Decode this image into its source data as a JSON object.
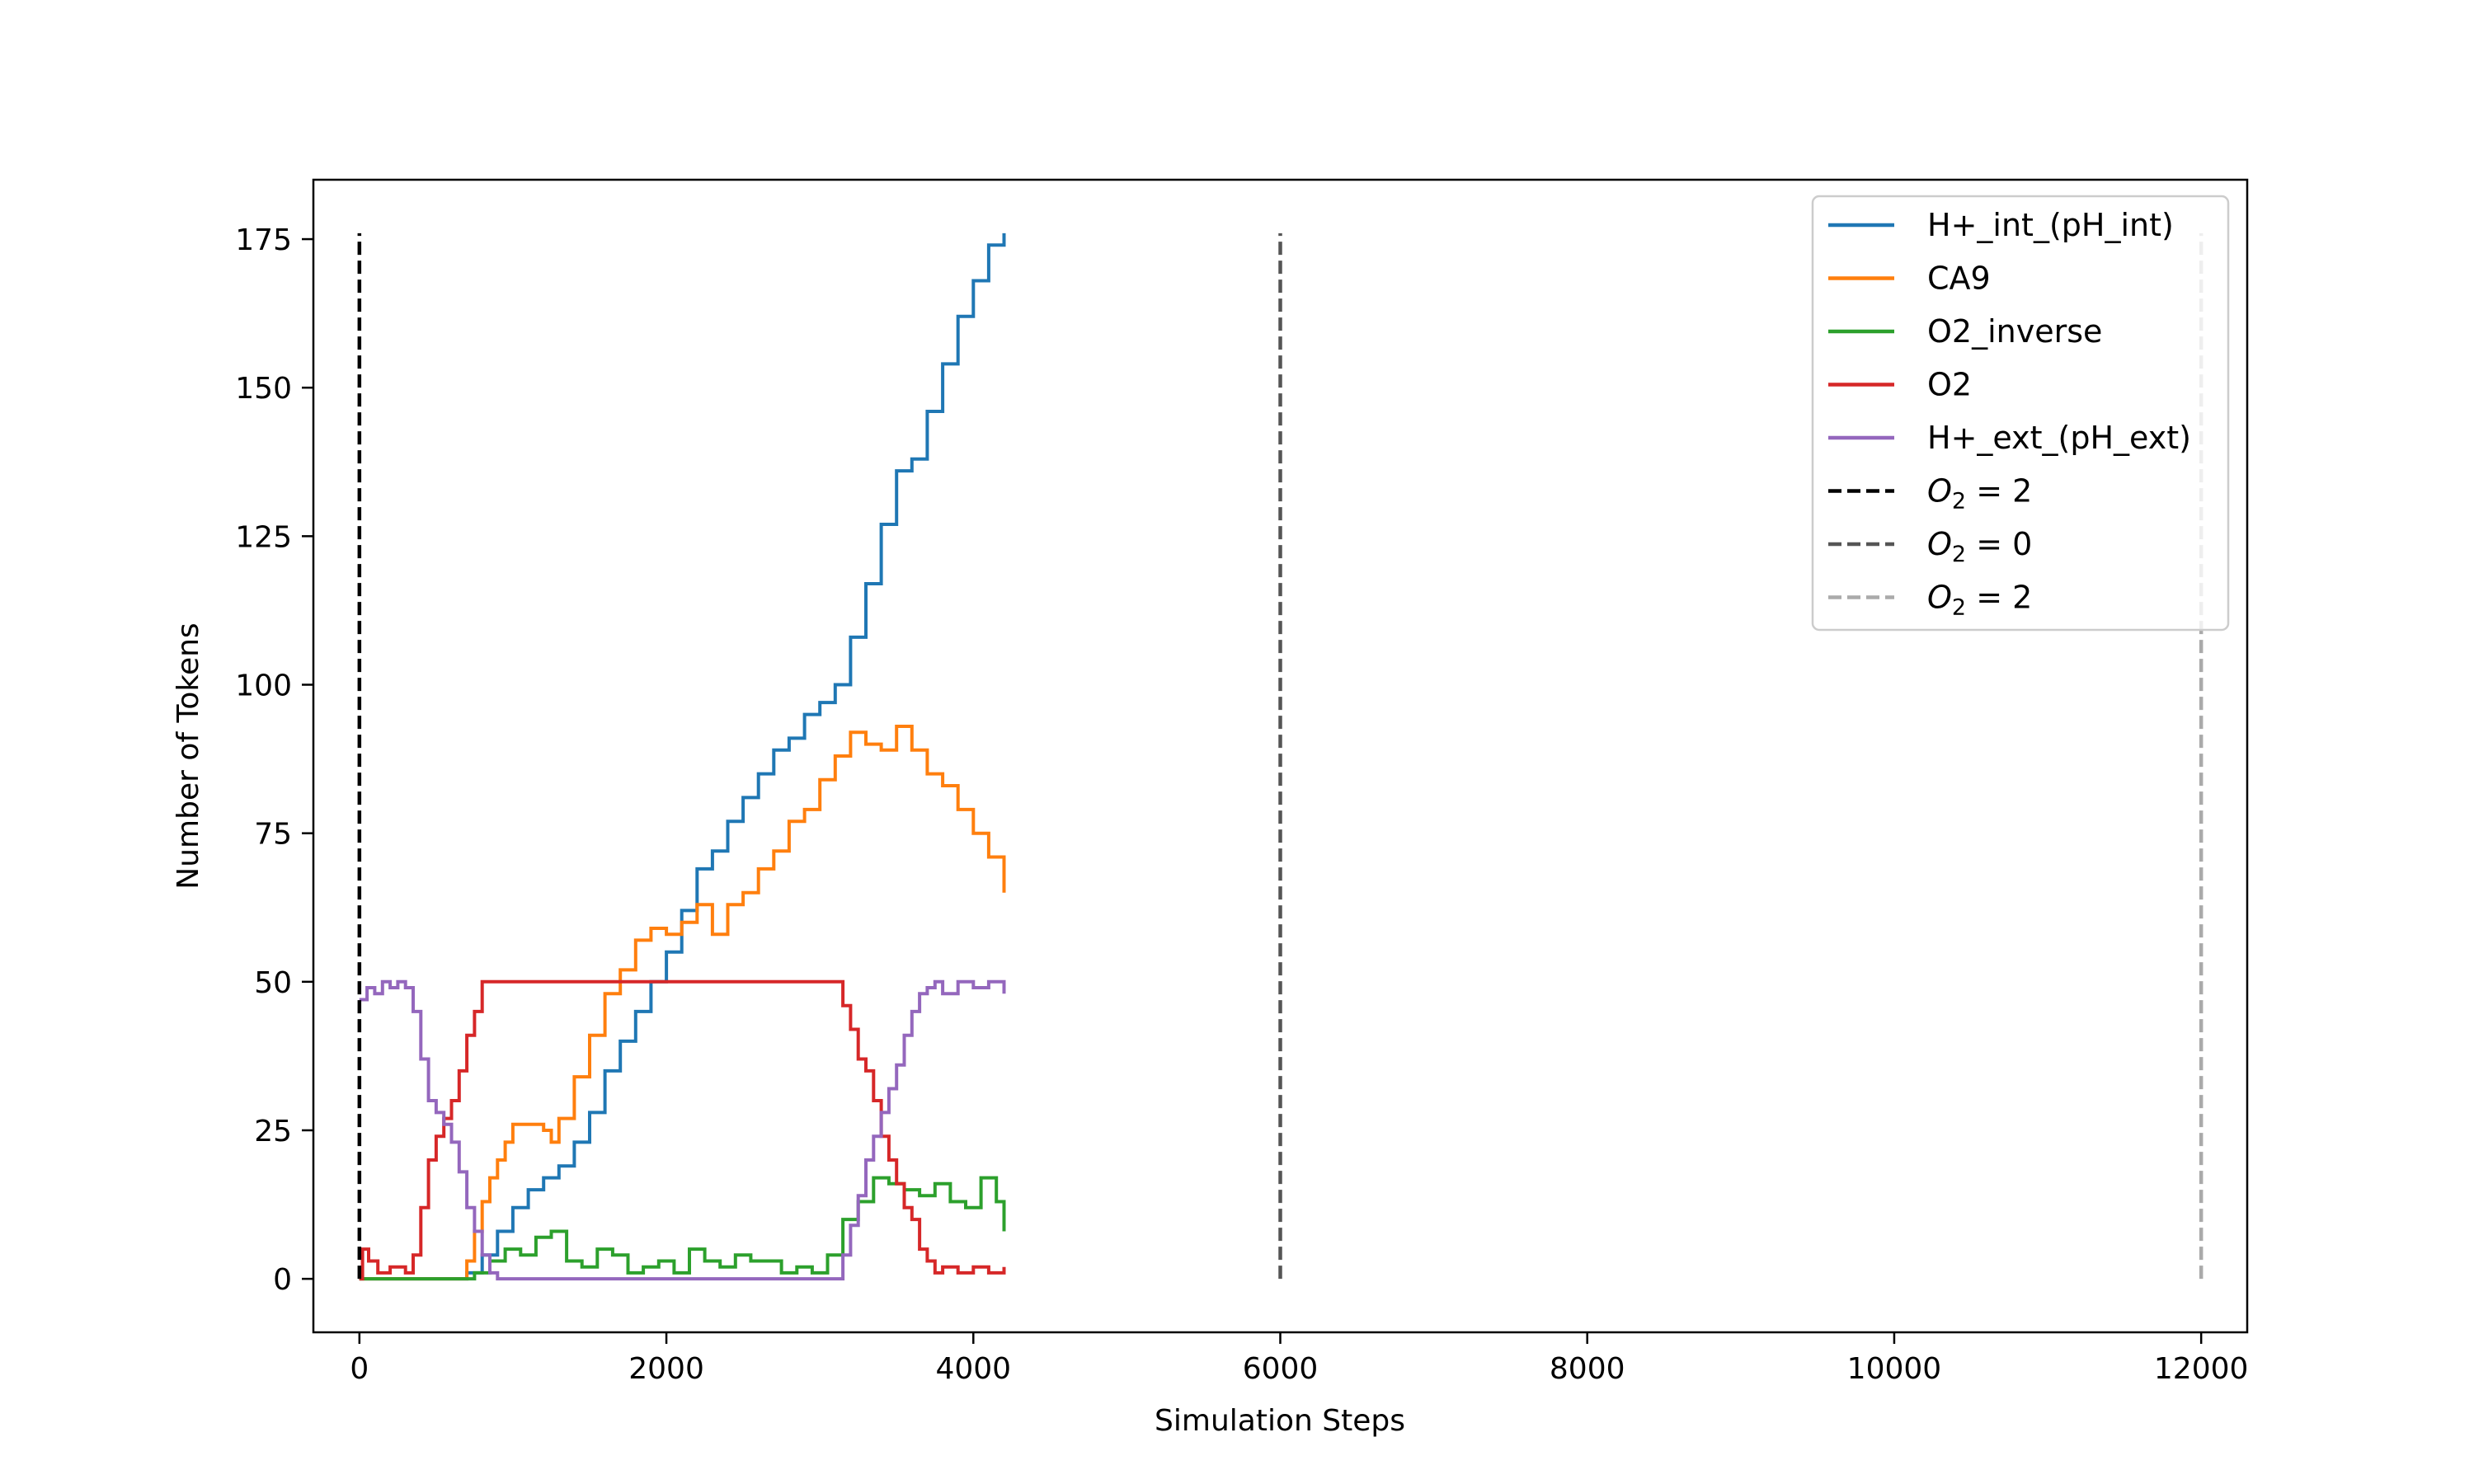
{
  "chart_data": {
    "type": "line",
    "title": "",
    "xlabel": "Simulation Steps",
    "ylabel": "Number of Tokens",
    "xlim": [
      -300,
      12300
    ],
    "ylim": [
      -9,
      185
    ],
    "x_ticks": [
      0,
      2000,
      4000,
      6000,
      8000,
      10000,
      12000
    ],
    "x_tick_labels": [
      "0",
      "2000",
      "4000",
      "6000",
      "8000",
      "10000",
      "12000"
    ],
    "y_ticks": [
      0,
      25,
      50,
      75,
      100,
      125,
      150,
      175
    ],
    "y_tick_labels": [
      "0",
      "25",
      "50",
      "75",
      "100",
      "125",
      "150",
      "175"
    ],
    "grid": false,
    "legend_position": "top-right",
    "series": [
      {
        "name": "H+_int_(pH_int)",
        "color": "#1f77b4",
        "x": [
          0,
          600,
          700,
          800,
          900,
          1000,
          1100,
          1200,
          1300,
          1400,
          1500,
          1600,
          1700,
          1800,
          1900,
          2000,
          2100,
          2200,
          2300,
          2400,
          2500,
          2600,
          2700,
          2800,
          2900,
          3000,
          3100,
          3200,
          3300,
          3400,
          3500,
          3600,
          3700,
          3800,
          3900,
          4000,
          4100,
          4200
        ],
        "y": [
          0,
          0,
          1,
          4,
          8,
          12,
          15,
          17,
          19,
          23,
          28,
          35,
          40,
          45,
          50,
          55,
          62,
          69,
          72,
          77,
          81,
          85,
          89,
          91,
          95,
          97,
          100,
          108,
          117,
          127,
          136,
          138,
          146,
          154,
          162,
          168,
          174,
          176
        ]
      },
      {
        "name": "CA9",
        "color": "#ff7f0e",
        "x": [
          0,
          600,
          700,
          750,
          800,
          850,
          900,
          950,
          1000,
          1100,
          1200,
          1250,
          1300,
          1400,
          1500,
          1600,
          1700,
          1800,
          1900,
          2000,
          2100,
          2200,
          2300,
          2400,
          2500,
          2600,
          2700,
          2800,
          2900,
          3000,
          3100,
          3200,
          3300,
          3400,
          3500,
          3600,
          3700,
          3800,
          3900,
          4000,
          4100,
          4200
        ],
        "y": [
          0,
          0,
          3,
          8,
          13,
          17,
          20,
          23,
          26,
          26,
          25,
          23,
          27,
          34,
          41,
          48,
          52,
          57,
          59,
          58,
          60,
          63,
          58,
          63,
          65,
          69,
          72,
          77,
          79,
          84,
          88,
          92,
          90,
          89,
          93,
          89,
          85,
          83,
          79,
          75,
          71,
          65
        ]
      },
      {
        "name": "O2_inverse",
        "color": "#2ca02c",
        "x": [
          0,
          500,
          650,
          750,
          850,
          950,
          1050,
          1150,
          1250,
          1350,
          1450,
          1550,
          1650,
          1750,
          1850,
          1950,
          2050,
          2150,
          2250,
          2350,
          2450,
          2550,
          2650,
          2750,
          2850,
          2950,
          3050,
          3150,
          3250,
          3350,
          3450,
          3550,
          3650,
          3750,
          3850,
          3950,
          4050,
          4150,
          4200
        ],
        "y": [
          0,
          0,
          0,
          1,
          3,
          5,
          4,
          7,
          8,
          3,
          2,
          5,
          4,
          1,
          2,
          3,
          1,
          5,
          3,
          2,
          4,
          3,
          3,
          1,
          2,
          1,
          4,
          10,
          13,
          17,
          16,
          15,
          14,
          16,
          13,
          12,
          17,
          13,
          8
        ]
      },
      {
        "name": "O2",
        "color": "#d62728",
        "x": [
          0,
          20,
          60,
          120,
          200,
          300,
          350,
          400,
          450,
          500,
          550,
          600,
          650,
          700,
          750,
          800,
          850,
          900,
          3100,
          3150,
          3200,
          3250,
          3300,
          3350,
          3400,
          3450,
          3500,
          3550,
          3600,
          3650,
          3700,
          3750,
          3800,
          3900,
          4000,
          4100,
          4200
        ],
        "y": [
          0,
          5,
          3,
          1,
          2,
          1,
          4,
          12,
          20,
          24,
          27,
          30,
          35,
          41,
          45,
          50,
          50,
          50,
          50,
          46,
          42,
          37,
          35,
          30,
          24,
          20,
          16,
          12,
          10,
          5,
          3,
          1,
          2,
          1,
          2,
          1,
          2
        ]
      },
      {
        "name": "H+_ext_(pH_ext)",
        "color": "#9467bd",
        "x": [
          0,
          50,
          100,
          150,
          200,
          250,
          300,
          350,
          400,
          450,
          500,
          550,
          600,
          650,
          700,
          750,
          800,
          850,
          900,
          3100,
          3150,
          3200,
          3250,
          3300,
          3350,
          3400,
          3450,
          3500,
          3550,
          3600,
          3650,
          3700,
          3750,
          3800,
          3900,
          4000,
          4100,
          4200
        ],
        "y": [
          47,
          49,
          48,
          50,
          49,
          50,
          49,
          45,
          37,
          30,
          28,
          26,
          23,
          18,
          12,
          8,
          4,
          1,
          0,
          0,
          4,
          9,
          14,
          20,
          24,
          28,
          32,
          36,
          41,
          45,
          48,
          49,
          50,
          48,
          50,
          49,
          50,
          48
        ]
      }
    ],
    "vlines": [
      {
        "name": "O2 = 2",
        "legend_label": "O",
        "legend_sub": "2",
        "legend_tail": " = 2",
        "x": 0,
        "y_range": [
          0,
          176
        ],
        "color": "#000000"
      },
      {
        "name": "O2 = 0",
        "legend_label": "O",
        "legend_sub": "2",
        "legend_tail": " = 0",
        "x": 6000,
        "y_range": [
          0,
          176
        ],
        "color": "#555555"
      },
      {
        "name": "O2 = 2",
        "legend_label": "O",
        "legend_sub": "2",
        "legend_tail": " = 2",
        "x": 12000,
        "y_range": [
          0,
          176
        ],
        "color": "#aaaaaa"
      }
    ]
  }
}
